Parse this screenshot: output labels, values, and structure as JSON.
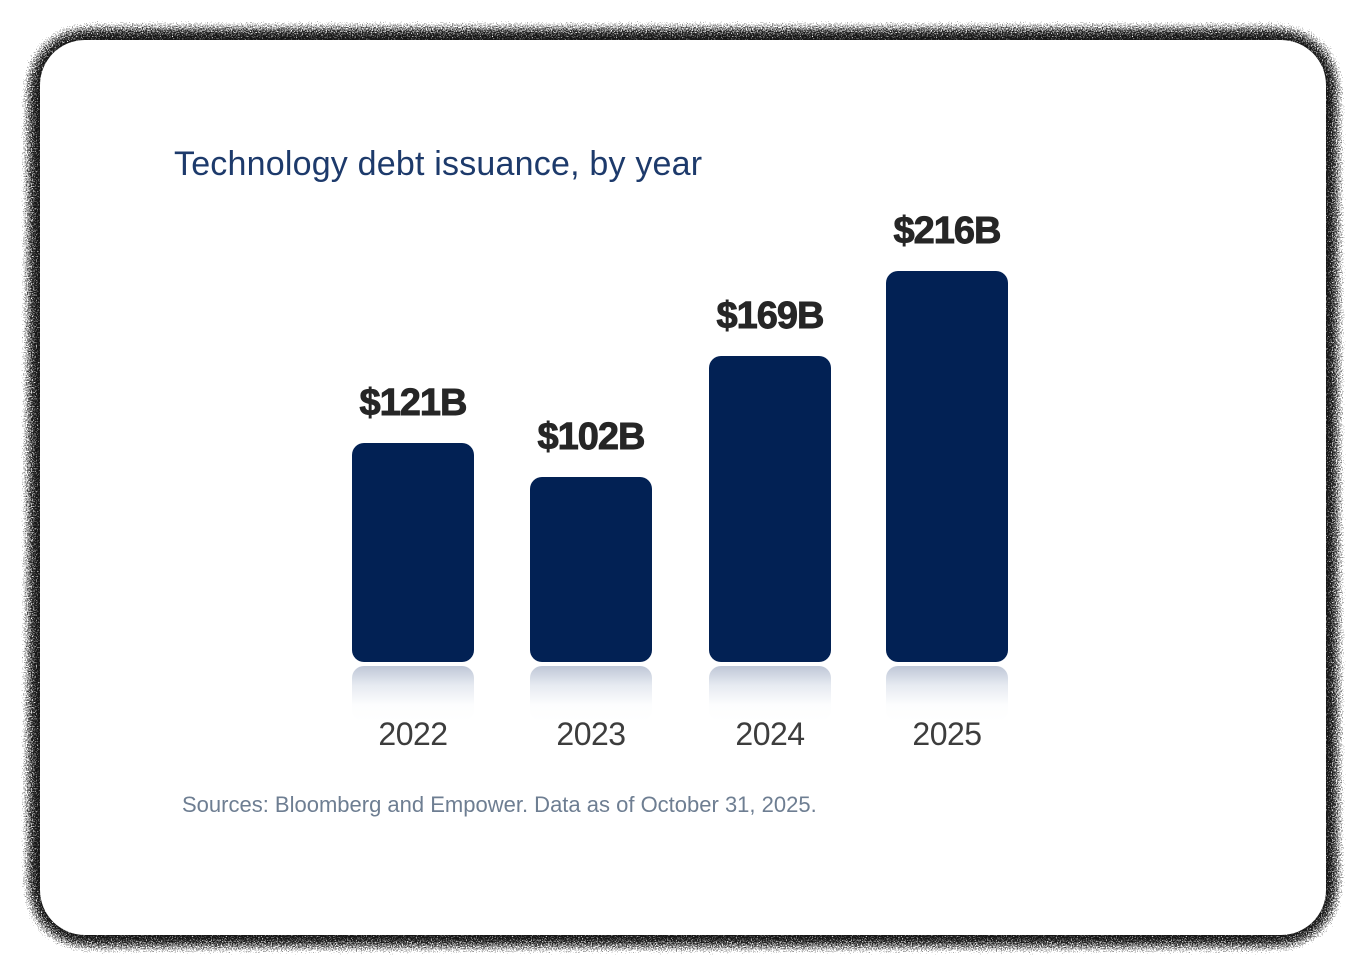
{
  "card": {
    "title": "Technology debt issuance, by year",
    "source_note": "Sources: Bloomberg and Empower. Data as of October 31, 2025."
  },
  "colors": {
    "card_background": "#ffffff",
    "title": "#1d3a6b",
    "bar": "#022154",
    "value_label": "#262626",
    "year_label": "#3d3d3d",
    "source_note": "#6e7e92"
  },
  "chart_data": {
    "type": "bar",
    "title": "Technology debt issuance, by year",
    "categories": [
      "2022",
      "2023",
      "2024",
      "2025"
    ],
    "values": [
      121,
      102,
      169,
      216
    ],
    "data_labels": [
      "$121B",
      "$102B",
      "$169B",
      "$216B"
    ],
    "unit": "USD billions",
    "xlabel": "",
    "ylabel": "",
    "ylim": [
      0,
      240
    ],
    "grid": false,
    "legend": false,
    "bar_color": "#022154",
    "source": "Sources: Bloomberg and Empower. Data as of October 31, 2025."
  }
}
